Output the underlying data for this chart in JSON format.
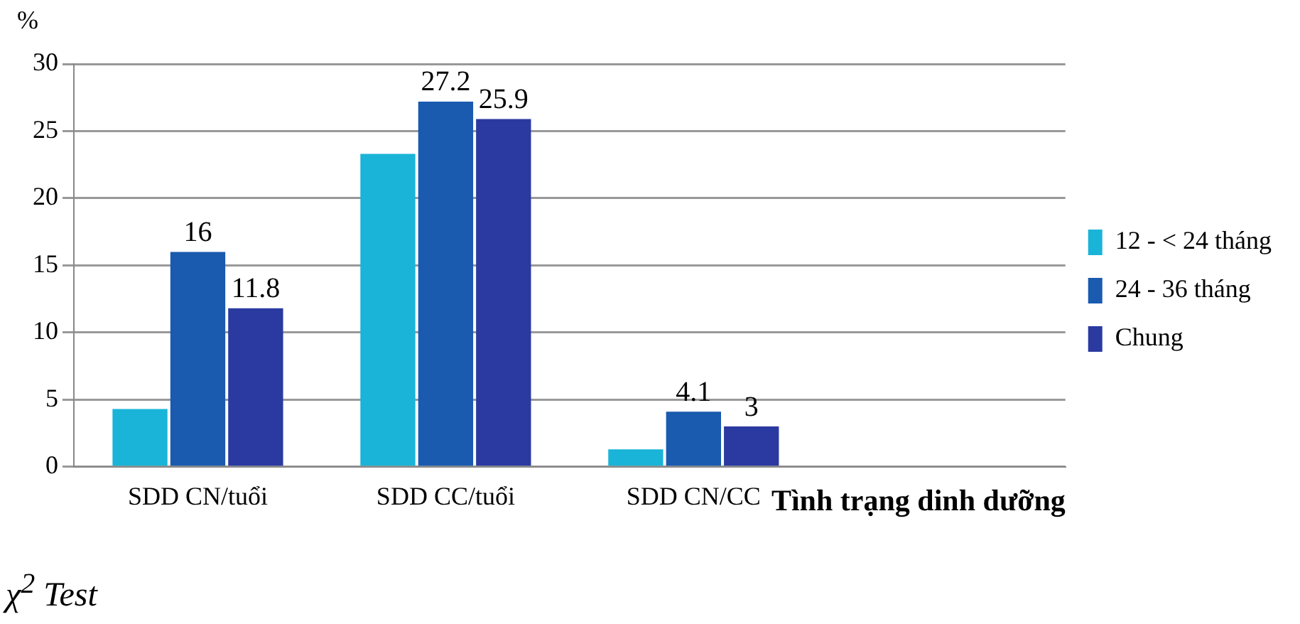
{
  "chart_data": {
    "type": "bar",
    "ylabel": "%",
    "xlabel": "Tình trạng dinh dưỡng",
    "categories": [
      "SDD CN/tuổi",
      "SDD CC/tuổi",
      "SDD CN/CC",
      null
    ],
    "series": [
      {
        "name": "12 - < 24 tháng",
        "color": "#1ab4d8",
        "values": [
          4.3,
          23.3,
          1.3,
          null
        ],
        "value_labels": [
          null,
          null,
          null,
          null
        ]
      },
      {
        "name": "24 - 36 tháng",
        "color": "#1a5aaf",
        "values": [
          16,
          27.2,
          4.1,
          null
        ],
        "value_labels": [
          "16",
          "27.2",
          "4.1",
          null
        ]
      },
      {
        "name": "Chung",
        "color": "#2a3aa0",
        "values": [
          11.8,
          25.9,
          3,
          null
        ],
        "value_labels": [
          "11.8",
          "25.9",
          "3",
          null
        ]
      }
    ],
    "ylim": [
      0,
      30
    ],
    "yticks": [
      0,
      5,
      10,
      15,
      20,
      25,
      30
    ],
    "grid": "y",
    "legend": "right",
    "annotations": [
      "χ$^{2}$ Test"
    ]
  }
}
